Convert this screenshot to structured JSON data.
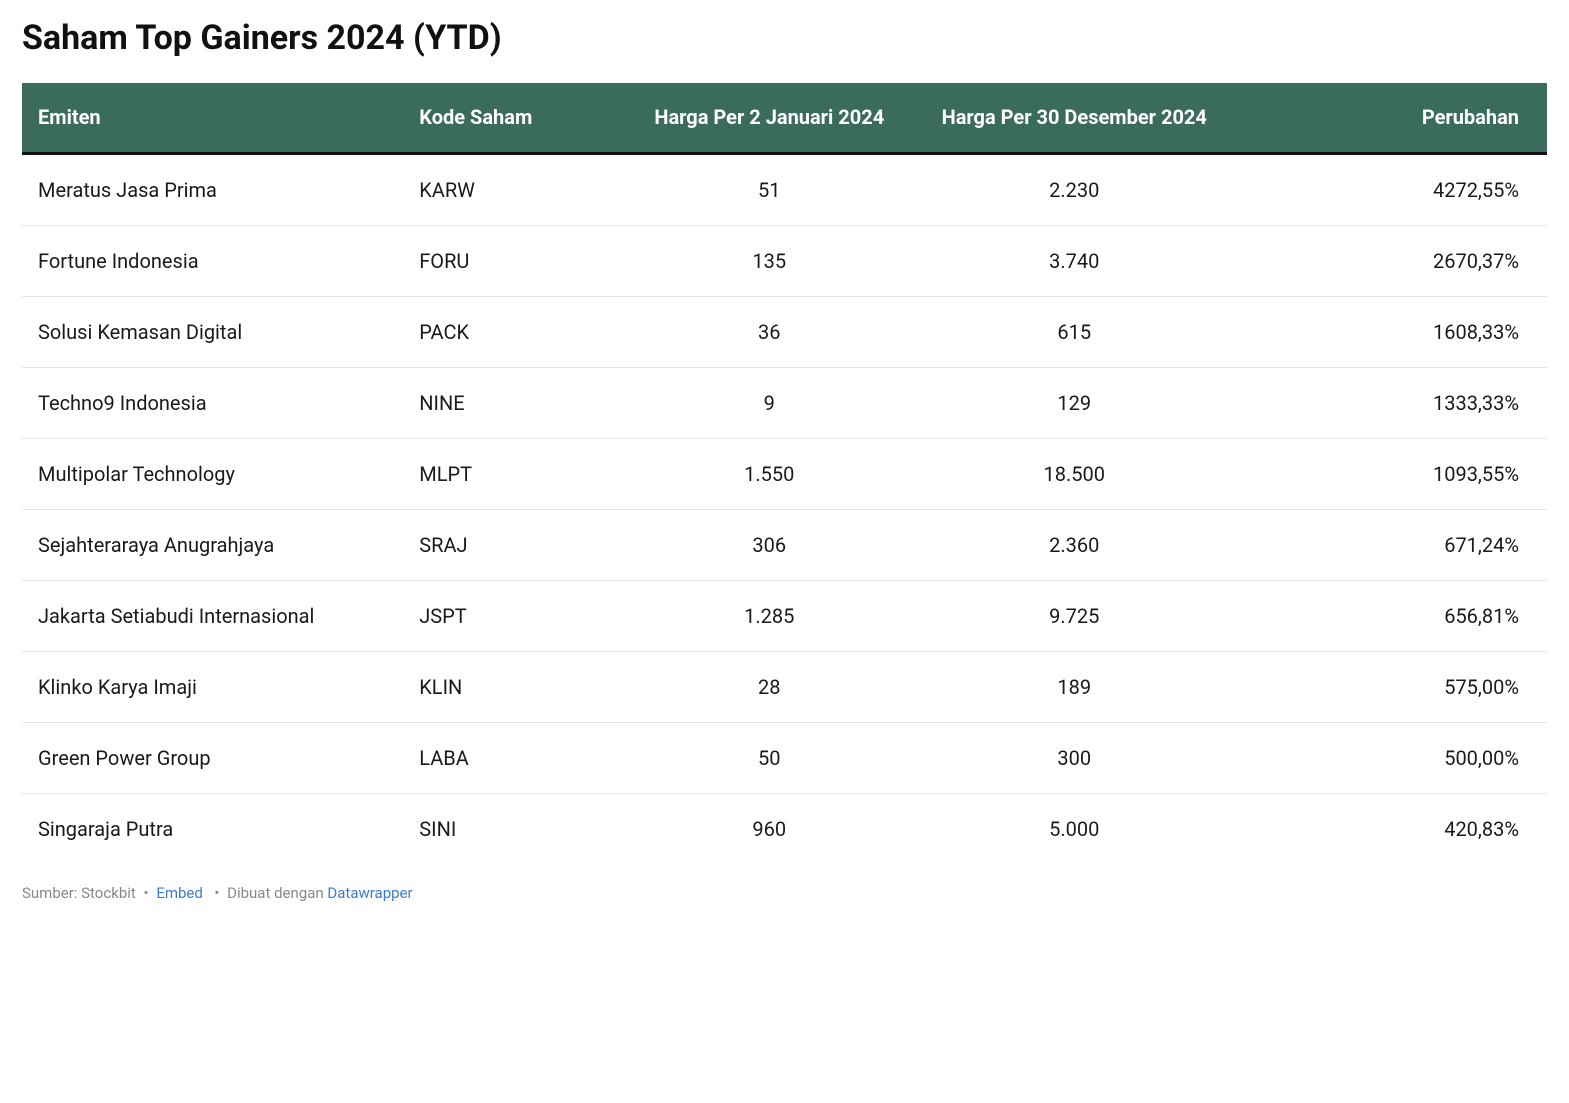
{
  "title": "Saham Top Gainers 2024 (YTD)",
  "table": {
    "type": "table",
    "header_bg": "#3a6b5d",
    "header_text_color": "#ffffff",
    "header_border_bottom": "#111111",
    "row_divider_color": "#e5e5e5",
    "body_text_color": "#1a1a1a",
    "background_color": "#ffffff",
    "header_fontsize": 20,
    "body_fontsize": 20,
    "columns": [
      {
        "key": "emiten",
        "label": "Emiten",
        "align": "left",
        "width_pct": 25
      },
      {
        "key": "kode",
        "label": "Kode Saham",
        "align": "left",
        "width_pct": 14
      },
      {
        "key": "harga_awal",
        "label": "Harga Per 2 Januari 2024",
        "align": "center",
        "width_pct": 20
      },
      {
        "key": "harga_akhir",
        "label": "Harga Per 30 Desember 2024",
        "align": "center",
        "width_pct": 20
      },
      {
        "key": "perubahan",
        "label": "Perubahan",
        "align": "right",
        "width_pct": 21
      }
    ],
    "rows": [
      {
        "emiten": "Meratus Jasa Prima",
        "kode": "KARW",
        "harga_awal": "51",
        "harga_akhir": "2.230",
        "perubahan": "4272,55%"
      },
      {
        "emiten": "Fortune Indonesia",
        "kode": "FORU",
        "harga_awal": "135",
        "harga_akhir": "3.740",
        "perubahan": "2670,37%"
      },
      {
        "emiten": "Solusi Kemasan Digital",
        "kode": "PACK",
        "harga_awal": "36",
        "harga_akhir": "615",
        "perubahan": "1608,33%"
      },
      {
        "emiten": "Techno9 Indonesia",
        "kode": "NINE",
        "harga_awal": "9",
        "harga_akhir": "129",
        "perubahan": "1333,33%"
      },
      {
        "emiten": "Multipolar Technology",
        "kode": "MLPT",
        "harga_awal": "1.550",
        "harga_akhir": "18.500",
        "perubahan": "1093,55%"
      },
      {
        "emiten": "Sejahteraraya Anugrahjaya",
        "kode": "SRAJ",
        "harga_awal": "306",
        "harga_akhir": "2.360",
        "perubahan": "671,24%"
      },
      {
        "emiten": "Jakarta Setiabudi Internasional",
        "kode": "JSPT",
        "harga_awal": "1.285",
        "harga_akhir": "9.725",
        "perubahan": "656,81%"
      },
      {
        "emiten": "Klinko Karya Imaji",
        "kode": "KLIN",
        "harga_awal": "28",
        "harga_akhir": "189",
        "perubahan": "575,00%"
      },
      {
        "emiten": "Green Power Group",
        "kode": "LABA",
        "harga_awal": "50",
        "harga_akhir": "300",
        "perubahan": "500,00%"
      },
      {
        "emiten": "Singaraja Putra",
        "kode": "SINI",
        "harga_awal": "960",
        "harga_akhir": "5.000",
        "perubahan": "420,83%"
      }
    ]
  },
  "footer": {
    "source_label": "Sumber: Stockbit",
    "embed_label": "Embed",
    "made_with_prefix": "Dibuat dengan",
    "made_with_link": "Datawrapper",
    "text_color": "#888888",
    "link_color": "#3a7bd5"
  }
}
